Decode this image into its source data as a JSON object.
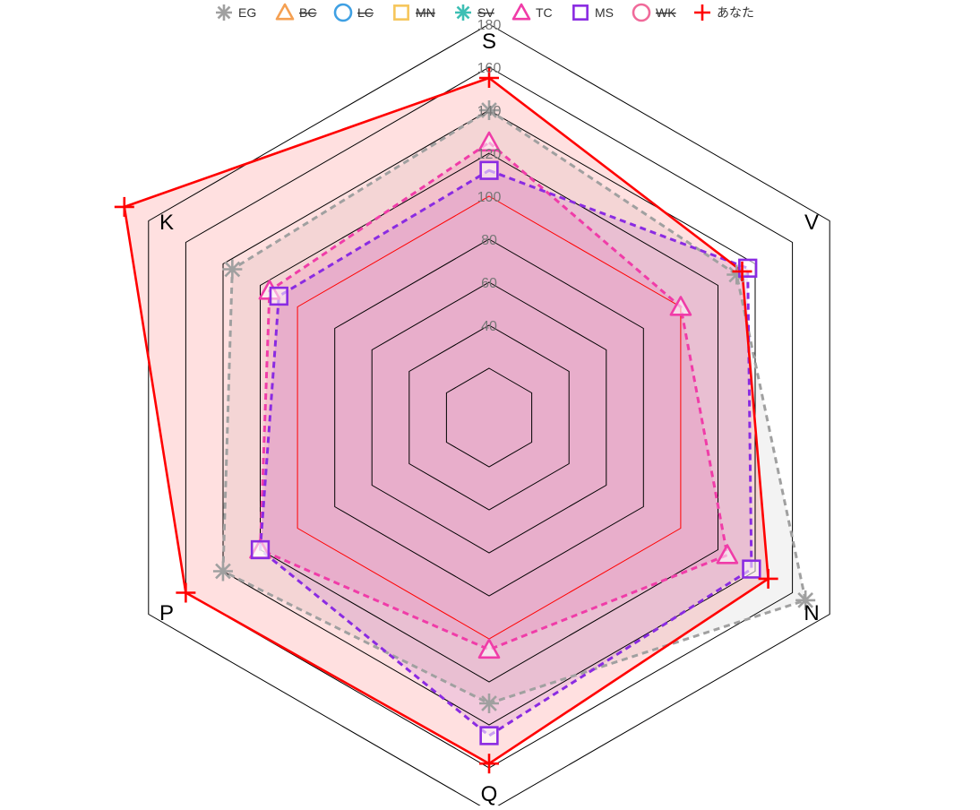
{
  "chart_data": {
    "type": "radar",
    "axes": [
      "S",
      "V",
      "N",
      "Q",
      "P",
      "K"
    ],
    "ticks": [
      40,
      60,
      80,
      100,
      120,
      140,
      160,
      180
    ],
    "range": [
      20,
      180
    ],
    "grid": true,
    "legend_position": "top",
    "series": [
      {
        "name": "EG",
        "marker": "asterisk",
        "color": "#a0a0a0",
        "hidden": false,
        "dash": true,
        "fill_opacity": 0.12,
        "values": [
          140,
          130,
          167,
          130,
          140,
          135
        ]
      },
      {
        "name": "BC",
        "marker": "triangle",
        "color": "#f5a052",
        "hidden": true
      },
      {
        "name": "LC",
        "marker": "circle",
        "color": "#3fa0e3",
        "hidden": true
      },
      {
        "name": "MN",
        "marker": "square",
        "color": "#f6c65b",
        "hidden": true
      },
      {
        "name": "SV",
        "marker": "asterisk",
        "color": "#3ebfb4",
        "hidden": true
      },
      {
        "name": "TC",
        "marker": "triangle",
        "color": "#f03ca8",
        "hidden": false,
        "dash": true,
        "fill_opacity": 0.12,
        "values": [
          125,
          100,
          125,
          105,
          120,
          115
        ]
      },
      {
        "name": "MS",
        "marker": "square",
        "color": "#8a2be2",
        "hidden": false,
        "dash": true,
        "fill_opacity": 0.12,
        "values": [
          112,
          136,
          138,
          145,
          120,
          110
        ]
      },
      {
        "name": "WK",
        "marker": "circle",
        "color": "#f06a9a",
        "hidden": true
      },
      {
        "name": "あなた",
        "marker": "plus",
        "color": "#ff0000",
        "hidden": false,
        "dash": false,
        "fill_opacity": 0.12,
        "values": [
          155,
          133,
          147,
          158,
          160,
          193
        ]
      }
    ],
    "reference_ring": {
      "value": 100,
      "color": "#ff0000"
    },
    "fill_color": "#ff0000"
  }
}
